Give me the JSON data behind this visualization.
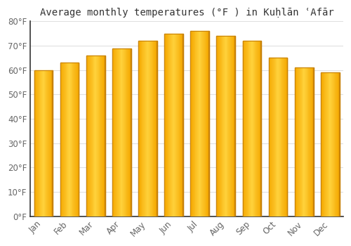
{
  "title": "Average monthly temperatures (°F ) in Kuḥlān ʿAfār",
  "months": [
    "Jan",
    "Feb",
    "Mar",
    "Apr",
    "May",
    "Jun",
    "Jul",
    "Aug",
    "Sep",
    "Oct",
    "Nov",
    "Dec"
  ],
  "values": [
    60,
    63,
    66,
    69,
    72,
    75,
    76,
    74,
    72,
    65,
    61,
    59
  ],
  "ylim": [
    0,
    80
  ],
  "ytick_step": 10,
  "background_color": "#ffffff",
  "plot_bg_color": "#f9f9f9",
  "grid_color": "#e0e0e0",
  "bar_edge_color": "#c8830a",
  "bar_center_color": "#ffd04a",
  "bar_outer_color": "#f5a800",
  "title_fontsize": 10,
  "tick_fontsize": 8.5,
  "tick_color": "#666666"
}
